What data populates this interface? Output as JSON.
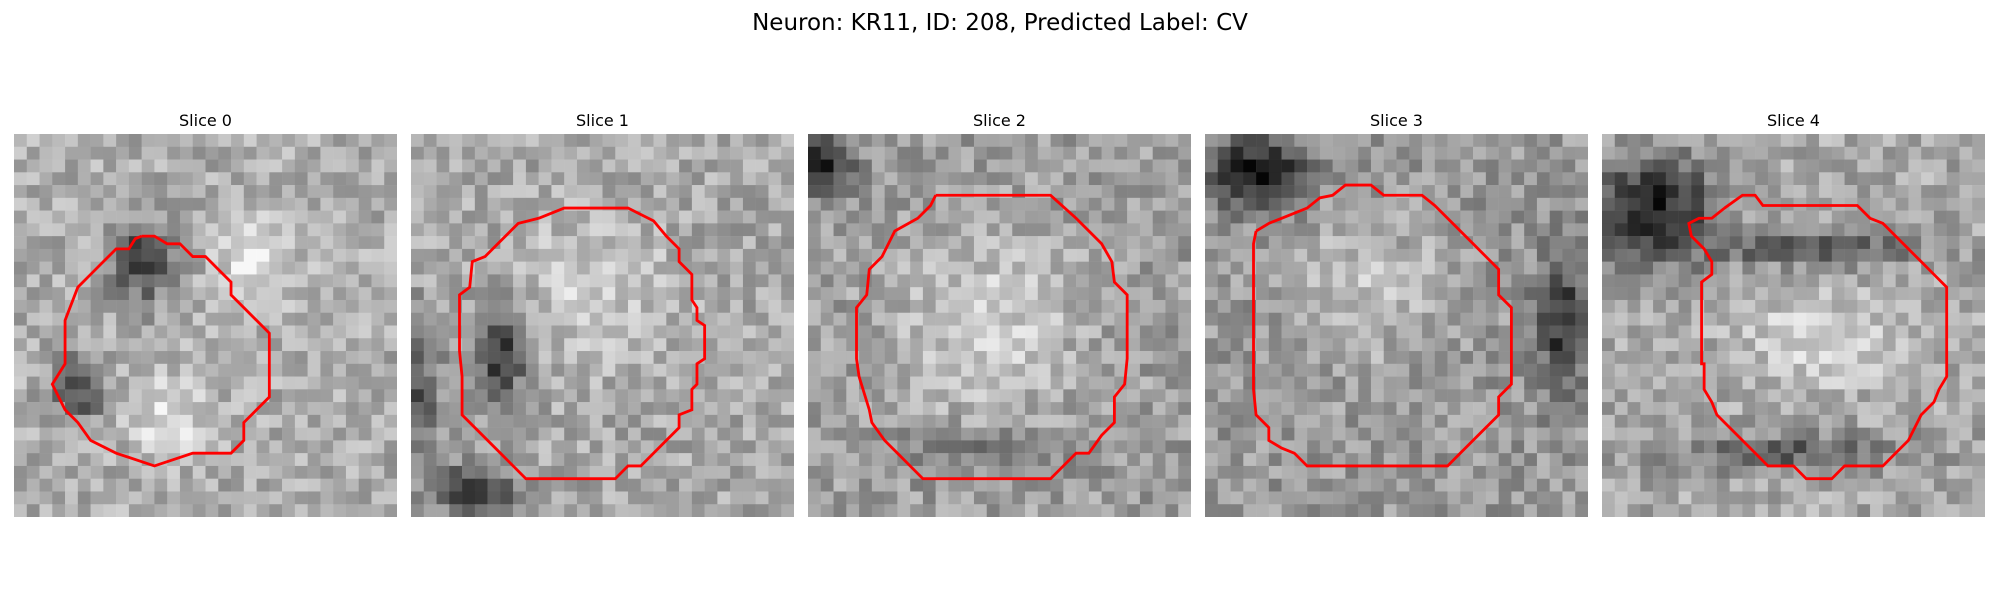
{
  "figure": {
    "title": "Neuron: KR11, ID: 208, Predicted Label: CV"
  },
  "panels": [
    {
      "label": "Slice 0",
      "outline_color": "#ff0000"
    },
    {
      "label": "Slice 1",
      "outline_color": "#ff0000"
    },
    {
      "label": "Slice 2",
      "outline_color": "#ff0000"
    },
    {
      "label": "Slice 3",
      "outline_color": "#ff0000"
    },
    {
      "label": "Slice 4",
      "outline_color": "#ff0000"
    }
  ]
}
